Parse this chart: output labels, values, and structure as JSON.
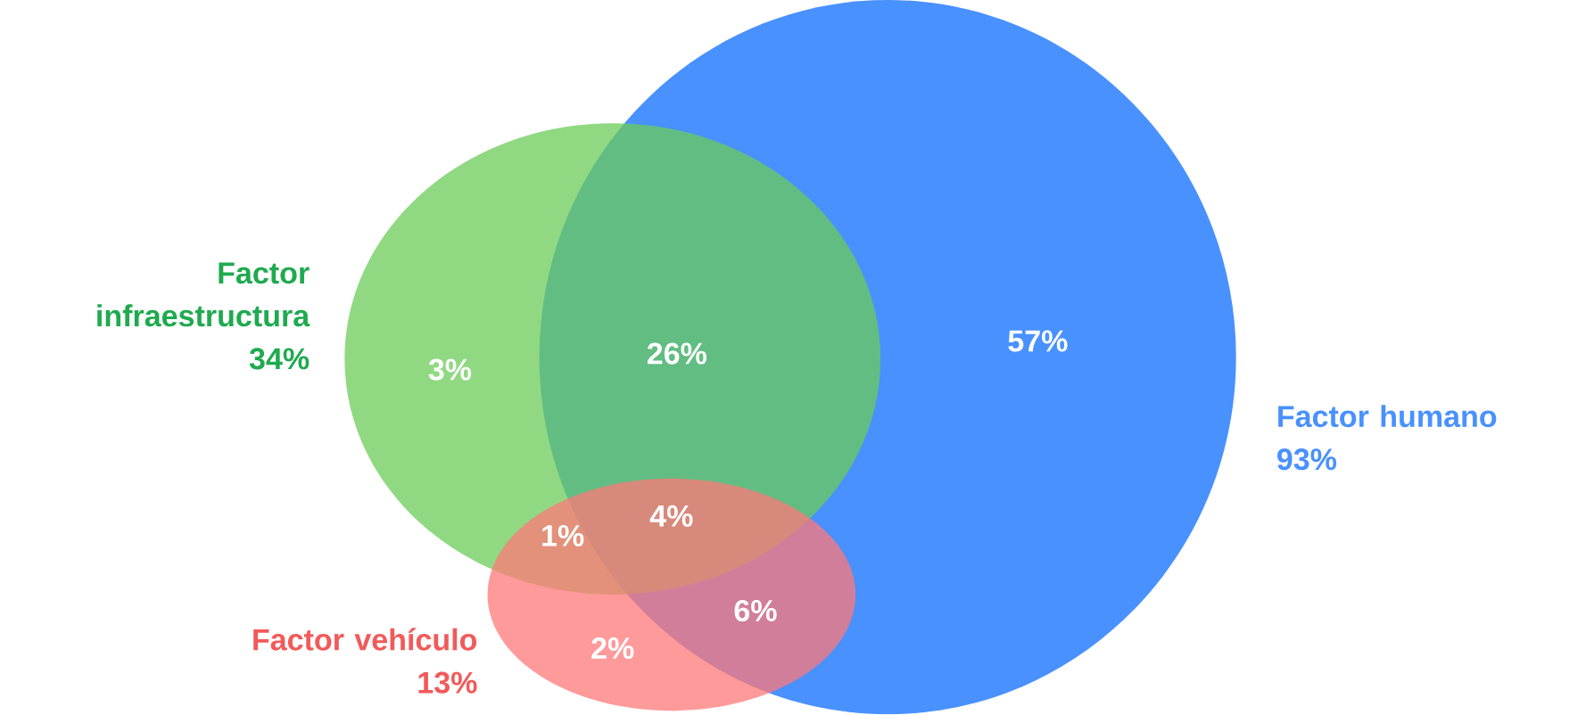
{
  "chart_data": {
    "type": "other",
    "categories": [
      "Factor infraestructura",
      "Factor humano",
      "Factor vehículo"
    ],
    "values": [
      34,
      93,
      13
    ],
    "value_labels": [
      "34%",
      "93%",
      "13%"
    ],
    "colors": [
      "#6bcc58",
      "#4891ff",
      "#ff7878"
    ],
    "annotations": [
      "3%",
      "26%",
      "57%",
      "1%",
      "4%",
      "6%",
      "2%"
    ]
  }
}
